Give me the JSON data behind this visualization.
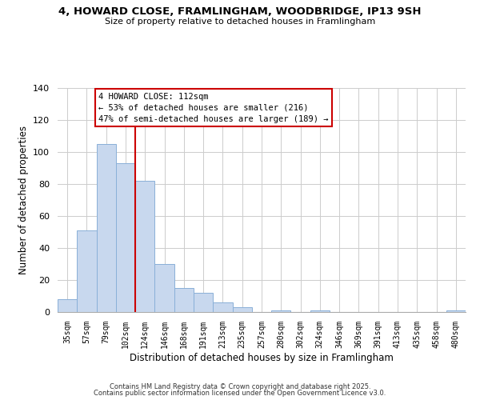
{
  "title": "4, HOWARD CLOSE, FRAMLINGHAM, WOODBRIDGE, IP13 9SH",
  "subtitle": "Size of property relative to detached houses in Framlingham",
  "xlabel": "Distribution of detached houses by size in Framlingham",
  "ylabel": "Number of detached properties",
  "bar_color": "#c8d8ee",
  "bar_edge_color": "#8ab0d8",
  "categories": [
    "35sqm",
    "57sqm",
    "79sqm",
    "102sqm",
    "124sqm",
    "146sqm",
    "168sqm",
    "191sqm",
    "213sqm",
    "235sqm",
    "257sqm",
    "280sqm",
    "302sqm",
    "324sqm",
    "346sqm",
    "369sqm",
    "391sqm",
    "413sqm",
    "435sqm",
    "458sqm",
    "480sqm"
  ],
  "values": [
    8,
    51,
    105,
    93,
    82,
    30,
    15,
    12,
    6,
    3,
    0,
    1,
    0,
    1,
    0,
    0,
    0,
    0,
    0,
    0,
    1
  ],
  "ylim": [
    0,
    140
  ],
  "yticks": [
    0,
    20,
    40,
    60,
    80,
    100,
    120,
    140
  ],
  "vline_x": 3.5,
  "vline_color": "#cc0000",
  "annotation_title": "4 HOWARD CLOSE: 112sqm",
  "annotation_line1": "← 53% of detached houses are smaller (216)",
  "annotation_line2": "47% of semi-detached houses are larger (189) →",
  "footer1": "Contains HM Land Registry data © Crown copyright and database right 2025.",
  "footer2": "Contains public sector information licensed under the Open Government Licence v3.0.",
  "background_color": "#ffffff",
  "grid_color": "#cccccc"
}
